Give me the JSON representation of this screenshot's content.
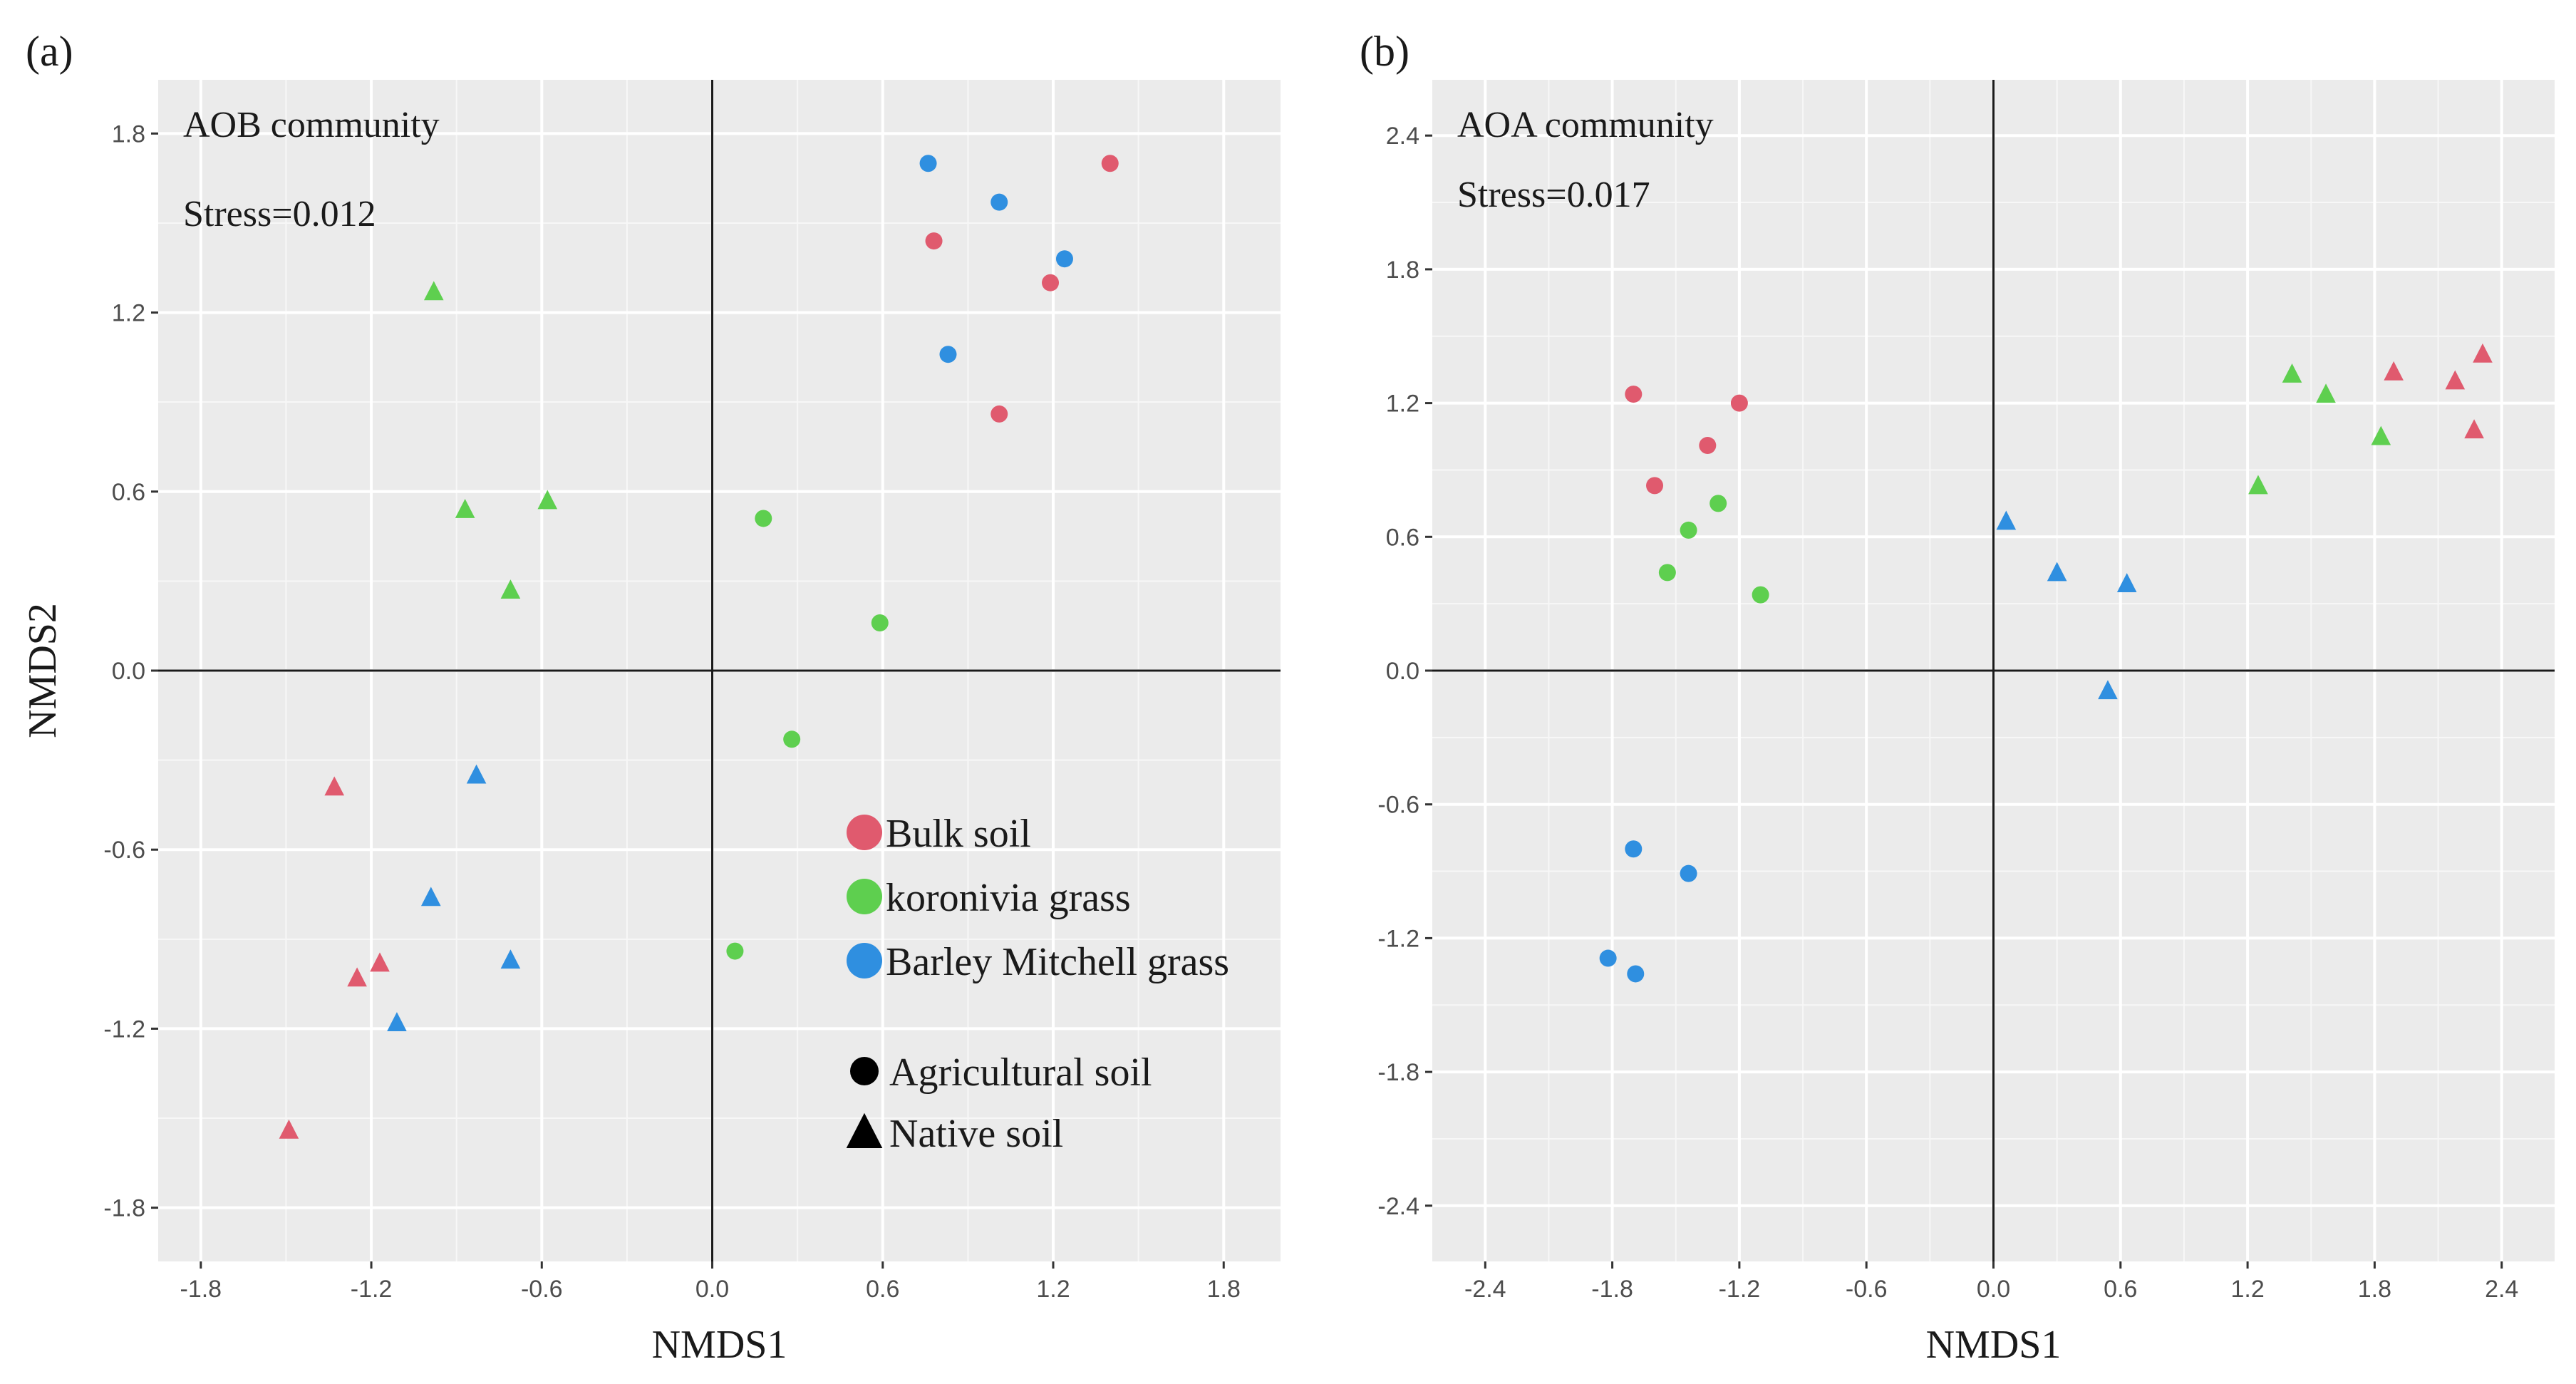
{
  "chart_data": [
    {
      "panel_label": "(a)",
      "type": "scatter",
      "title": "AOB community",
      "stress": "Stress=0.012",
      "xlabel": "NMDS1",
      "ylabel": "NMDS2",
      "xlim": [
        -1.95,
        2.0
      ],
      "ylim": [
        -1.98,
        1.98
      ],
      "xticks": [
        -1.8,
        -1.2,
        -0.6,
        0.0,
        0.6,
        1.2,
        1.8
      ],
      "yticks": [
        -1.8,
        -1.2,
        -0.6,
        0.0,
        0.6,
        1.2,
        1.8
      ],
      "xtick_labels": [
        "-1.8",
        "-1.2",
        "-0.6",
        "0.0",
        "0.6",
        "1.2",
        "1.8"
      ],
      "ytick_labels": [
        "-1.8",
        "-1.2",
        "-0.6",
        "0.0",
        "0.6",
        "1.2",
        "1.8"
      ],
      "grid": true,
      "reference_lines": [
        0,
        0
      ],
      "series": [
        {
          "name": "Bulk soil",
          "soil": "Agricultural soil",
          "color": "#e05a6e",
          "shape": "circle",
          "x": [
            1.4,
            0.78,
            1.19,
            1.01
          ],
          "y": [
            1.7,
            1.44,
            1.3,
            0.86
          ]
        },
        {
          "name": "Barley Mitchell grass",
          "soil": "Agricultural soil",
          "color": "#2f8fe0",
          "shape": "circle",
          "x": [
            0.76,
            1.01,
            1.24,
            0.83
          ],
          "y": [
            1.7,
            1.57,
            1.38,
            1.06
          ]
        },
        {
          "name": "koronivia grass",
          "soil": "Agricultural soil",
          "color": "#5ecf4f",
          "shape": "circle",
          "x": [
            0.18,
            0.59,
            0.28,
            0.08
          ],
          "y": [
            0.51,
            0.16,
            -0.23,
            -0.94
          ]
        },
        {
          "name": "koronivia grass",
          "soil": "Native soil",
          "color": "#5ecf4f",
          "shape": "triangle",
          "x": [
            -0.98,
            -0.87,
            -0.58,
            -0.71
          ],
          "y": [
            1.27,
            0.54,
            0.57,
            0.27
          ]
        },
        {
          "name": "Bulk soil",
          "soil": "Native soil",
          "color": "#e05a6e",
          "shape": "triangle",
          "x": [
            -1.33,
            -1.17,
            -1.25,
            -1.49
          ],
          "y": [
            -0.39,
            -0.98,
            -1.03,
            -1.54
          ]
        },
        {
          "name": "Barley Mitchell grass",
          "soil": "Native soil",
          "color": "#2f8fe0",
          "shape": "triangle",
          "x": [
            -0.83,
            -0.99,
            -0.71,
            -1.11
          ],
          "y": [
            -0.35,
            -0.76,
            -0.97,
            -1.18
          ]
        }
      ],
      "legend": {
        "position": "bottom-right",
        "groups": [
          {
            "label": "Bulk soil",
            "color": "#e05a6e"
          },
          {
            "label": "koronivia grass",
            "color": "#5ecf4f"
          },
          {
            "label": "Barley Mitchell grass",
            "color": "#2f8fe0"
          }
        ],
        "shapes": [
          {
            "label": "Agricultural soil",
            "shape": "circle"
          },
          {
            "label": "Native soil",
            "shape": "triangle"
          }
        ]
      }
    },
    {
      "panel_label": "(b)",
      "type": "scatter",
      "title": "AOA community",
      "stress": "Stress=0.017",
      "xlabel": "NMDS1",
      "ylabel": "",
      "xlim": [
        -2.65,
        2.65
      ],
      "ylim": [
        -2.65,
        2.65
      ],
      "xticks": [
        -2.4,
        -1.8,
        -1.2,
        -0.6,
        0.0,
        0.6,
        1.2,
        1.8,
        2.4
      ],
      "yticks": [
        -2.4,
        -1.8,
        -1.2,
        -0.6,
        0.0,
        0.6,
        1.2,
        1.8,
        2.4
      ],
      "xtick_labels": [
        "-2.4",
        "-1.8",
        "-1.2",
        "-0.6",
        "0.0",
        "0.6",
        "1.2",
        "1.8",
        "2.4"
      ],
      "ytick_labels": [
        "-2.4",
        "-1.8",
        "-1.2",
        "-0.6",
        "0.0",
        "0.6",
        "1.2",
        "1.8",
        "2.4"
      ],
      "grid": true,
      "reference_lines": [
        0,
        0
      ],
      "series": [
        {
          "name": "Bulk soil",
          "soil": "Agricultural soil",
          "color": "#e05a6e",
          "shape": "circle",
          "x": [
            -1.7,
            -1.2,
            -1.35,
            -1.6
          ],
          "y": [
            1.24,
            1.2,
            1.01,
            0.83
          ]
        },
        {
          "name": "koronivia grass",
          "soil": "Agricultural soil",
          "color": "#5ecf4f",
          "shape": "circle",
          "x": [
            -1.3,
            -1.44,
            -1.54,
            -1.1
          ],
          "y": [
            0.75,
            0.63,
            0.44,
            0.34
          ]
        },
        {
          "name": "Barley Mitchell grass",
          "soil": "Agricultural soil",
          "color": "#2f8fe0",
          "shape": "circle",
          "x": [
            -1.7,
            -1.44,
            -1.82,
            -1.69
          ],
          "y": [
            -0.8,
            -0.91,
            -1.29,
            -1.36
          ]
        },
        {
          "name": "koronivia grass",
          "soil": "Native soil",
          "color": "#5ecf4f",
          "shape": "triangle",
          "x": [
            1.41,
            1.57,
            1.83,
            1.25
          ],
          "y": [
            1.33,
            1.24,
            1.05,
            0.83
          ]
        },
        {
          "name": "Bulk soil",
          "soil": "Native soil",
          "color": "#e05a6e",
          "shape": "triangle",
          "x": [
            1.89,
            2.18,
            2.31,
            2.27
          ],
          "y": [
            1.34,
            1.3,
            1.42,
            1.08
          ]
        },
        {
          "name": "Barley Mitchell grass",
          "soil": "Native soil",
          "color": "#2f8fe0",
          "shape": "triangle",
          "x": [
            0.06,
            0.3,
            0.63,
            0.54
          ],
          "y": [
            0.67,
            0.44,
            0.39,
            -0.09
          ]
        }
      ]
    }
  ]
}
